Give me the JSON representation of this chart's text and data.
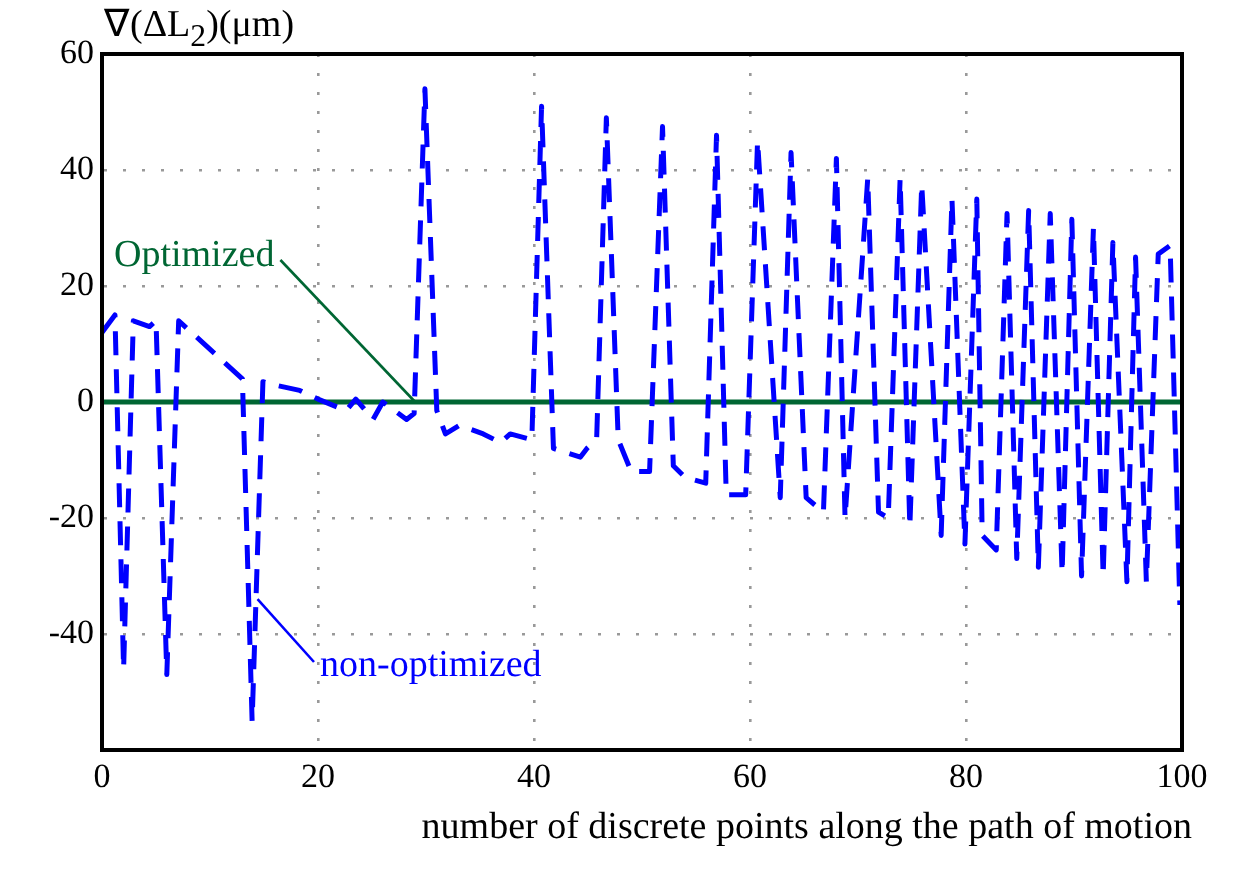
{
  "chart_data": {
    "type": "line",
    "ylabel": "∇(ΔL$_{2}$)(μm)",
    "xlabel": "number of discrete points along the path of motion",
    "xlim": [
      0,
      100
    ],
    "xticks": [
      0,
      20,
      40,
      60,
      80,
      100
    ],
    "ylim": [
      -60,
      60
    ],
    "yticks": [
      -40,
      -20,
      0,
      20,
      40,
      60
    ],
    "grid": true,
    "legend": false,
    "marker": "none",
    "series": [
      {
        "color": "#0000ff",
        "line_style": "dashed",
        "x": [
          0,
          1.2,
          2,
          2.9,
          4.4,
          5,
          6,
          7.1,
          13,
          13.9,
          14.9,
          15.8,
          18.3,
          20,
          22.6,
          23.5,
          25.1,
          26,
          28.2,
          28.9,
          29.9,
          31,
          31.8,
          33.1,
          35.3,
          36.9,
          37.8,
          39.8,
          40.7,
          41.8,
          44.3,
          44.9,
          45.8,
          46.7,
          47.8,
          49,
          50.7,
          51.9,
          52.9,
          54,
          55.9,
          56.9,
          57.8,
          59.6,
          60.7,
          62.8,
          63.8,
          65.2,
          66.8,
          68,
          68.8,
          70.9,
          71.9,
          72.8,
          73.9,
          74.8,
          75.9,
          77.7,
          78.7,
          79.9,
          81,
          81.5,
          82.8,
          83.8,
          84.7,
          85.8,
          86.7,
          87.8,
          88.9,
          89.8,
          90.7,
          91.8,
          92.7,
          93.6,
          94.9,
          95.7,
          96.7,
          97.8,
          98.9,
          99.8
        ],
        "values": [
          12,
          15,
          -46,
          14,
          13,
          14,
          -47,
          14,
          4,
          -55,
          3.5,
          3,
          2,
          0.5,
          -1.5,
          0.5,
          -3,
          0,
          -3,
          -2,
          54,
          -1.5,
          -5.5,
          -4,
          -5.5,
          -7,
          -5.5,
          -6.5,
          51,
          -8,
          -9.5,
          -8,
          -6.5,
          49,
          -6.5,
          -12,
          -12,
          47.5,
          -11,
          -13,
          -14,
          46,
          -16,
          -16,
          45,
          -16.5,
          43,
          -16.5,
          -19,
          42,
          -20,
          38.5,
          -19,
          -20,
          38.5,
          -21.5,
          37.5,
          -23,
          35,
          -24.5,
          35,
          -23,
          -25.5,
          32.5,
          -27,
          33,
          -28.5,
          32.5,
          -29.5,
          31.5,
          -30,
          30,
          -30,
          27.5,
          -31,
          25,
          -31,
          25.5,
          27,
          -35
        ]
      },
      {
        "color": "#006633",
        "line_style": "solid",
        "x": [
          0,
          100
        ],
        "values": [
          0,
          0
        ]
      }
    ],
    "annotations": [
      {
        "text": "Optimized",
        "x": 29,
        "y": 0
      },
      {
        "text": "non-optimized",
        "x": 14.4,
        "y": -34
      }
    ]
  }
}
